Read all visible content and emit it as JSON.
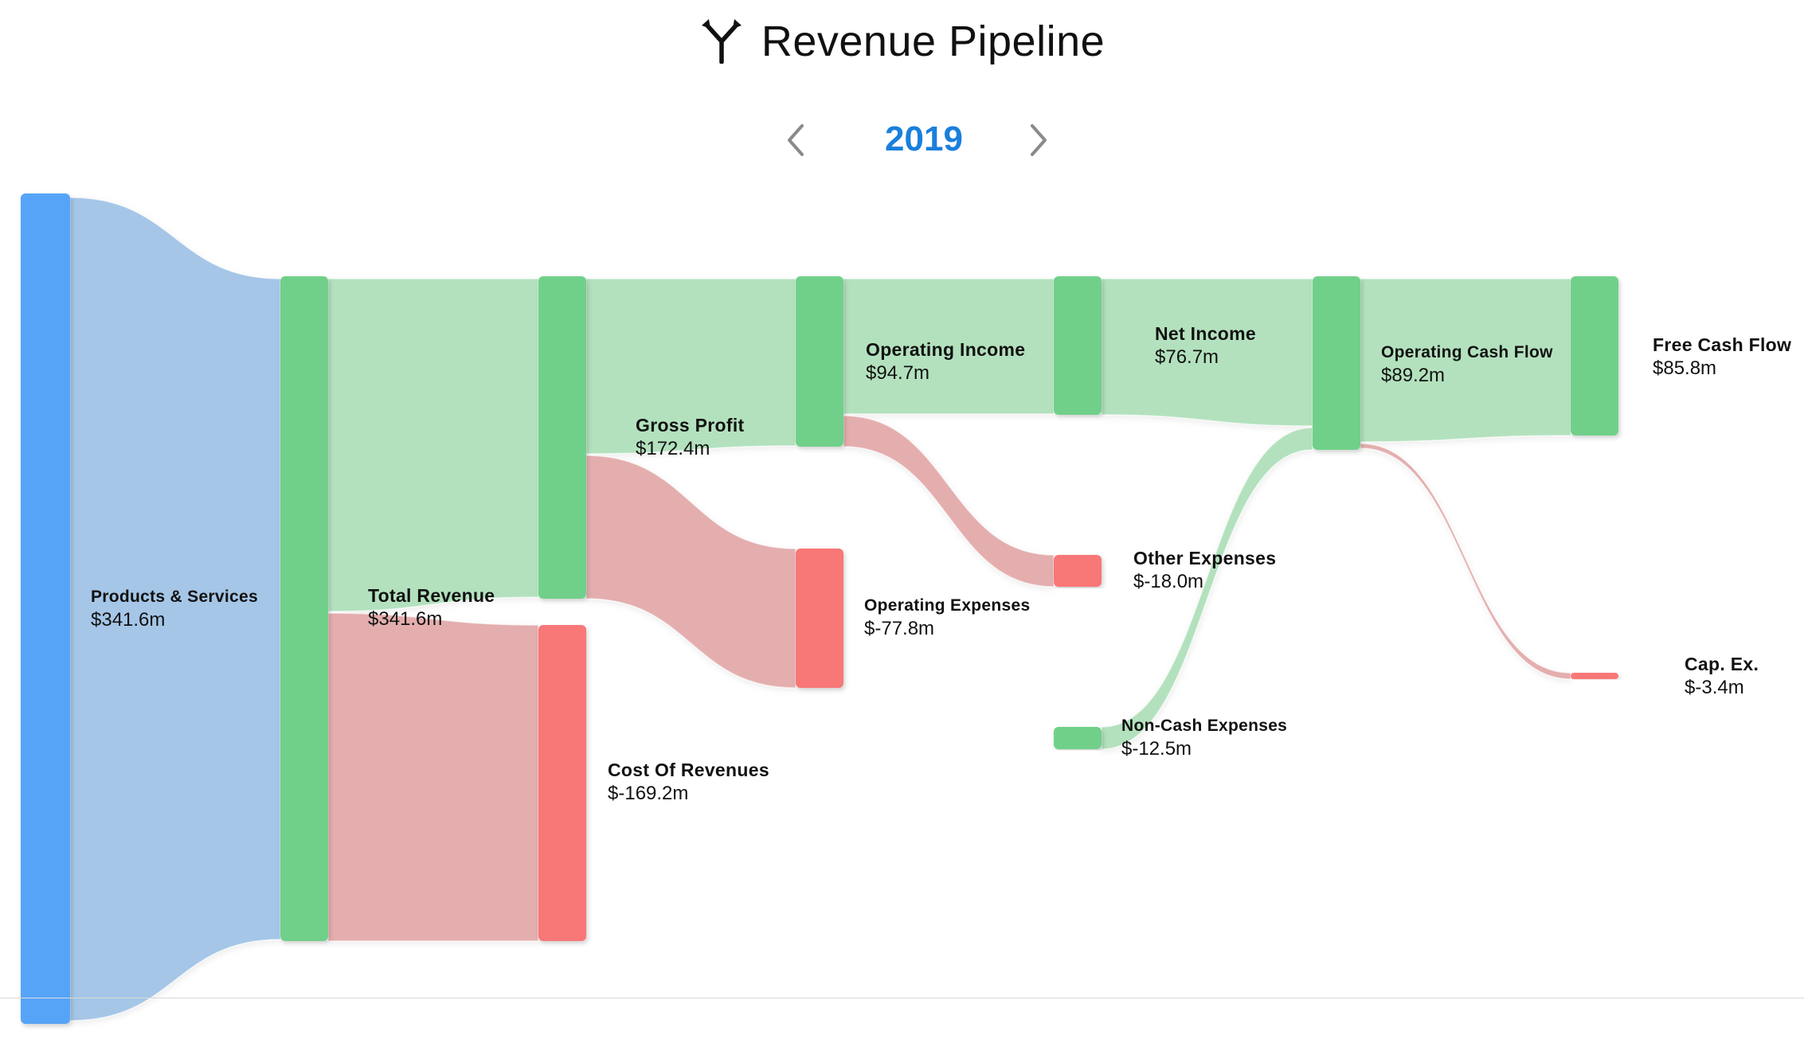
{
  "header": {
    "title": "Revenue Pipeline",
    "icon": "split-arrows-icon"
  },
  "year_nav": {
    "year": "2019",
    "prev_icon": "chevron-left-icon",
    "next_icon": "chevron-right-icon",
    "accent_color": "#1a7fdc"
  },
  "colors": {
    "source": "#56a4f7",
    "positive": "#6fd08a",
    "negative": "#f87777",
    "link_source": "#9dc1e6",
    "link_positive": "#ace0b8",
    "link_negative": "#e3a8a8"
  },
  "chart_data": {
    "type": "sankey",
    "title": "Revenue Pipeline",
    "year": "2019",
    "nodes": [
      {
        "id": "products",
        "label": "Products & Services",
        "value": "$341.6m"
      },
      {
        "id": "total",
        "label": "Total Revenue",
        "value": "$341.6m"
      },
      {
        "id": "gross",
        "label": "Gross Profit",
        "value": "$172.4m"
      },
      {
        "id": "cor",
        "label": "Cost Of Revenues",
        "value": "$-169.2m"
      },
      {
        "id": "opinc",
        "label": "Operating Income",
        "value": "$94.7m"
      },
      {
        "id": "opex",
        "label": "Operating Expenses",
        "value": "$-77.8m"
      },
      {
        "id": "netinc",
        "label": "Net Income",
        "value": "$76.7m"
      },
      {
        "id": "otherexp",
        "label": "Other Expenses",
        "value": "$-18.0m"
      },
      {
        "id": "noncash",
        "label": "Non-Cash Expenses",
        "value": "$-12.5m"
      },
      {
        "id": "ocf",
        "label": "Operating Cash Flow",
        "value": "$89.2m"
      },
      {
        "id": "fcf",
        "label": "Free Cash Flow",
        "value": "$85.8m"
      },
      {
        "id": "capex",
        "label": "Cap. Ex.",
        "value": "$-3.4m"
      }
    ],
    "links": [
      {
        "source": "products",
        "target": "total",
        "value": 341.6
      },
      {
        "source": "total",
        "target": "gross",
        "value": 172.4
      },
      {
        "source": "total",
        "target": "cor",
        "value": 169.2
      },
      {
        "source": "gross",
        "target": "opinc",
        "value": 94.7
      },
      {
        "source": "gross",
        "target": "opex",
        "value": 77.8
      },
      {
        "source": "opinc",
        "target": "netinc",
        "value": 76.7
      },
      {
        "source": "opinc",
        "target": "otherexp",
        "value": 18.0
      },
      {
        "source": "netinc",
        "target": "ocf",
        "value": 76.7
      },
      {
        "source": "noncash",
        "target": "ocf",
        "value": 12.5
      },
      {
        "source": "ocf",
        "target": "fcf",
        "value": 85.8
      },
      {
        "source": "ocf",
        "target": "capex",
        "value": 3.4
      }
    ]
  }
}
